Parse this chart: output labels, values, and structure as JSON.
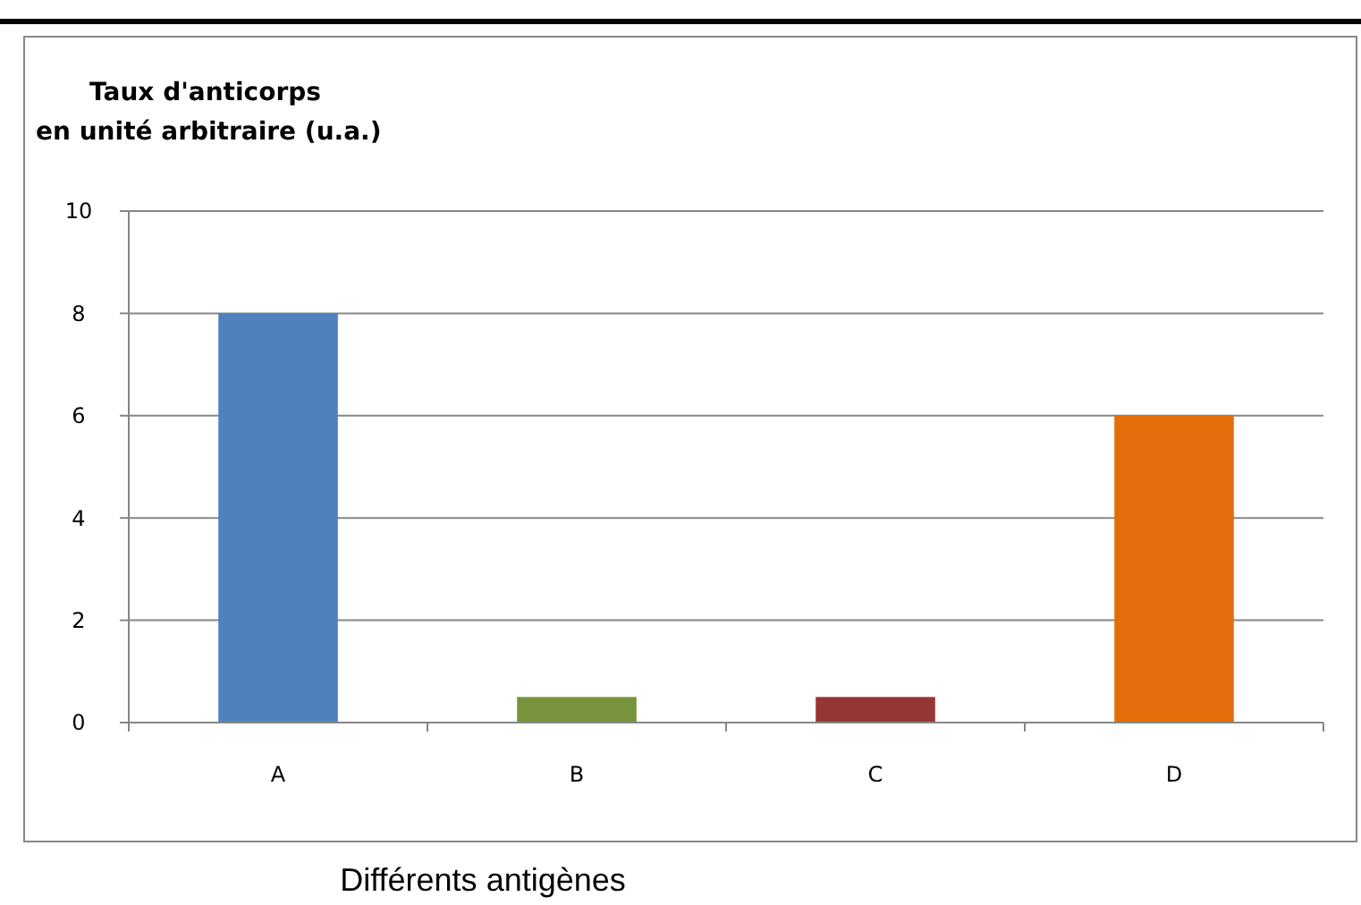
{
  "chart_data": {
    "type": "bar",
    "ylabel": "Taux d'anticorps\nen unité arbitraire (u.a.)",
    "xlabel": "Différents antigènes",
    "categories": [
      "A",
      "B",
      "C",
      "D"
    ],
    "values": [
      8,
      0.5,
      0.5,
      6
    ],
    "colors": [
      "#4f81bd",
      "#77933c",
      "#953735",
      "#e46c0a"
    ],
    "ylim": [
      0,
      10
    ],
    "yticks": [
      0,
      2,
      4,
      6,
      8,
      10
    ],
    "grid": "y"
  }
}
